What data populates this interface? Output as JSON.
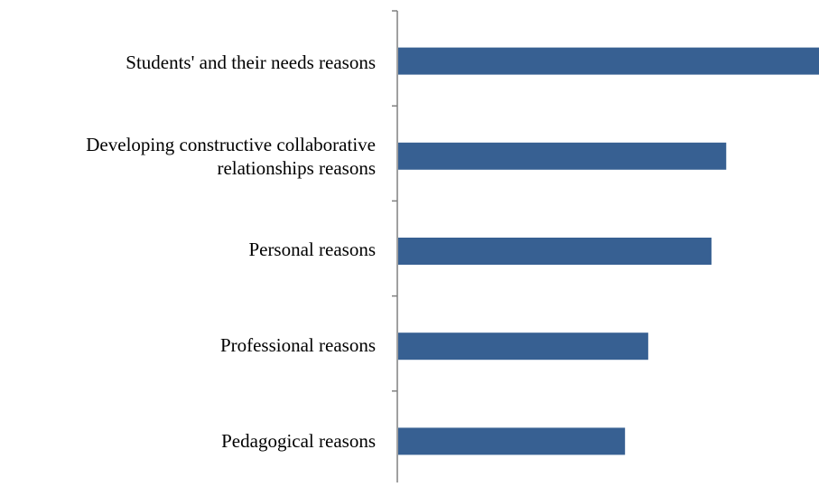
{
  "chart_data": {
    "type": "bar",
    "orientation": "horizontal",
    "categories": [
      "Students' and their needs reasons",
      "Developing constructive collaborative relationships reasons",
      "Personal reasons",
      "Professional reasons",
      "Pedagogical reasons"
    ],
    "category_labels_display": [
      "Students' and their needs reasons",
      "Developing constructive collaborative\nrelationships reasons",
      "Personal reasons",
      "Professional reasons",
      "Pedagogical reasons"
    ],
    "values": [
      100,
      78,
      74.5,
      59.5,
      54
    ],
    "xlim": [
      0,
      100
    ],
    "title": "",
    "xlabel": "",
    "ylabel": "",
    "grid": false,
    "legend": "none",
    "bar_color": "#376092"
  }
}
